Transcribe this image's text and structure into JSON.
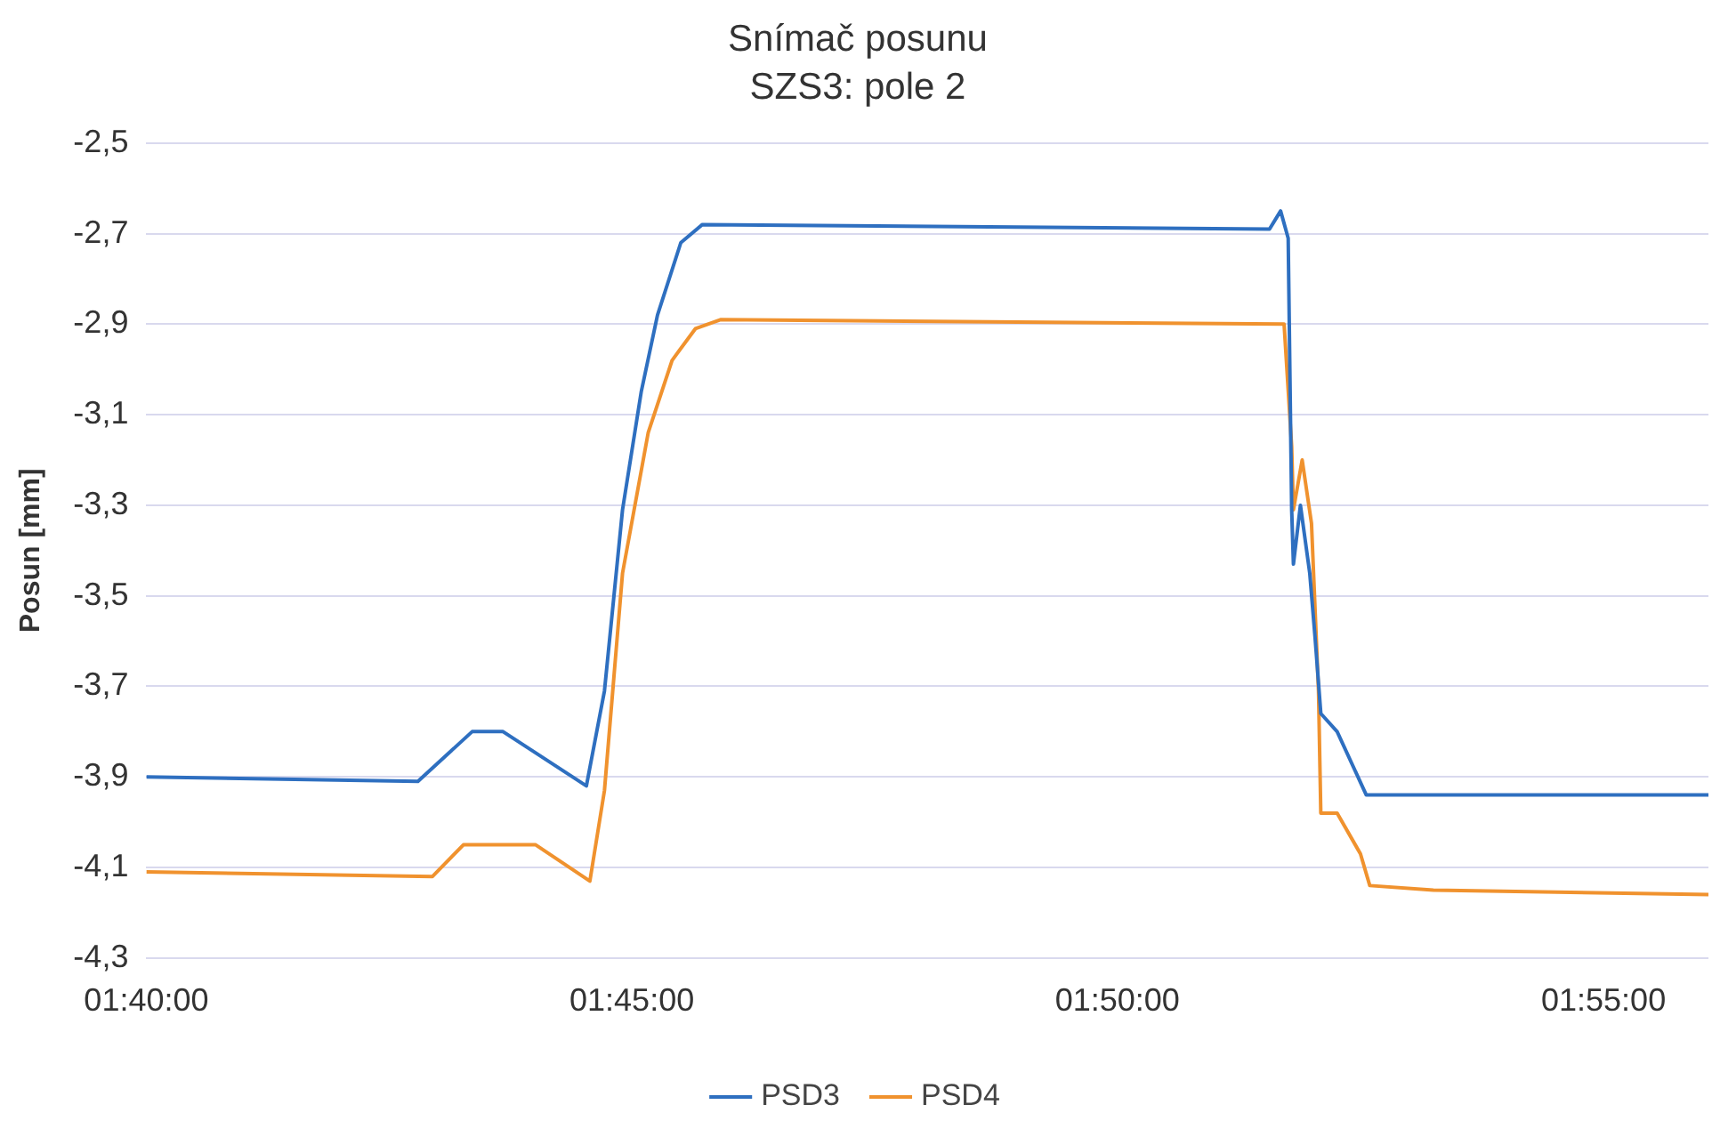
{
  "chart_data": {
    "type": "line",
    "title": "Snímač posunu",
    "subtitle": "SZS3: pole 2",
    "ylabel": "Posun [mm]",
    "ylim": [
      -4.3,
      -2.5
    ],
    "yticks": [
      {
        "value": -4.3,
        "label": "-4,3"
      },
      {
        "value": -4.1,
        "label": "-4,1"
      },
      {
        "value": -3.9,
        "label": "-3,9"
      },
      {
        "value": -3.7,
        "label": "-3,7"
      },
      {
        "value": -3.5,
        "label": "-3,5"
      },
      {
        "value": -3.3,
        "label": "-3,3"
      },
      {
        "value": -3.1,
        "label": "-3,1"
      },
      {
        "value": -2.9,
        "label": "-2,9"
      },
      {
        "value": -2.7,
        "label": "-2,7"
      },
      {
        "value": -2.5,
        "label": "-2,5"
      }
    ],
    "xlim": [
      1.6667,
      1.9347
    ],
    "xticks": [
      {
        "value": 1.6667,
        "label": "01:40:00"
      },
      {
        "value": 1.75,
        "label": "01:45:00"
      },
      {
        "value": 1.8333,
        "label": "01:50:00"
      },
      {
        "value": 1.9167,
        "label": "01:55:00"
      }
    ],
    "grid": "y",
    "legend": "bottom",
    "marker": "none",
    "line_style": "solid",
    "series": [
      {
        "name": "PSD3",
        "color": "#2e6fc0",
        "x": [
          1.6667,
          1.7133,
          1.7226,
          1.7279,
          1.7422,
          1.7453,
          1.7484,
          1.7516,
          1.7544,
          1.7584,
          1.7621,
          1.8594,
          1.8613,
          1.8626,
          1.8632,
          1.8635,
          1.8647,
          1.8663,
          1.8672,
          1.8682,
          1.871,
          1.876,
          1.9347
        ],
        "values": [
          -3.9,
          -3.91,
          -3.8,
          -3.8,
          -3.92,
          -3.71,
          -3.31,
          -3.05,
          -2.88,
          -2.72,
          -2.68,
          -2.69,
          -2.65,
          -2.71,
          -3.31,
          -3.43,
          -3.3,
          -3.45,
          -3.59,
          -3.76,
          -3.8,
          -3.94,
          -3.94
        ]
      },
      {
        "name": "PSD4",
        "color": "#f0922e",
        "x": [
          1.6667,
          1.7158,
          1.7211,
          1.7335,
          1.7428,
          1.7453,
          1.7484,
          1.7528,
          1.7569,
          1.7609,
          1.7652,
          1.8619,
          1.8632,
          1.8635,
          1.865,
          1.8666,
          1.8678,
          1.8682,
          1.871,
          1.875,
          1.8766,
          1.8875,
          1.9347
        ],
        "values": [
          -4.11,
          -4.12,
          -4.05,
          -4.05,
          -4.13,
          -3.93,
          -3.45,
          -3.14,
          -2.98,
          -2.91,
          -2.89,
          -2.9,
          -3.17,
          -3.31,
          -3.2,
          -3.34,
          -3.71,
          -3.98,
          -3.98,
          -4.07,
          -4.14,
          -4.15,
          -4.16
        ]
      }
    ]
  }
}
